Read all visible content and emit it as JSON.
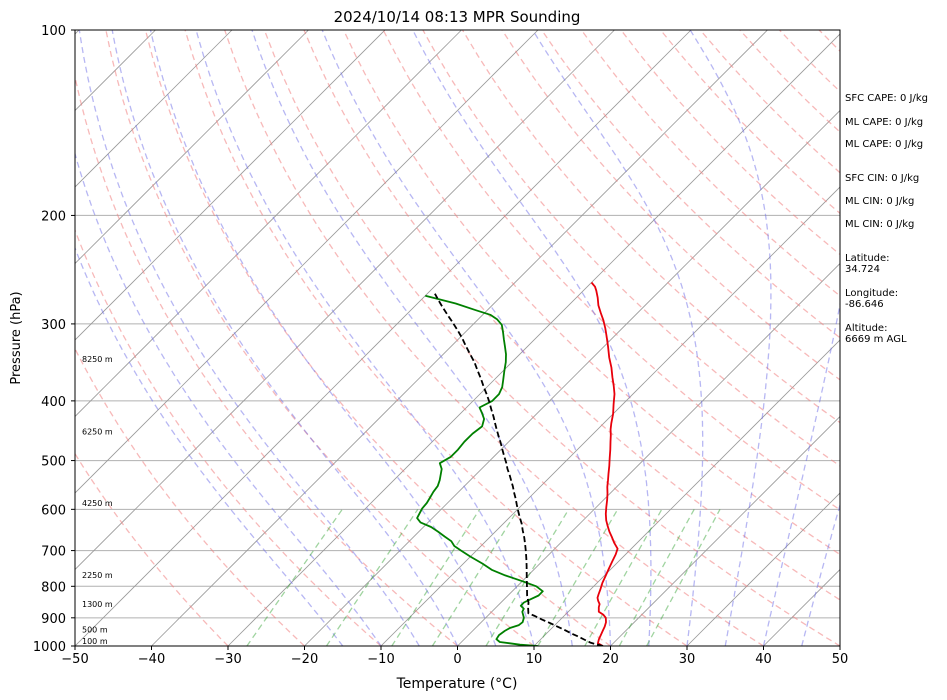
{
  "chart_data": {
    "type": "line",
    "title": "2024/10/14 08:13 MPR Sounding",
    "xlabel": "Temperature (°C)",
    "ylabel": "Pressure (hPa)",
    "xlim": [
      -50,
      50
    ],
    "ylim": [
      1000,
      100
    ],
    "y_scale": "log",
    "x_ticks": [
      "−50",
      "−40",
      "−30",
      "−20",
      "−10",
      "0",
      "10",
      "20",
      "30",
      "40",
      "50"
    ],
    "y_ticks": [
      "100",
      "200",
      "300",
      "400",
      "500",
      "600",
      "700",
      "800",
      "900",
      "1000"
    ],
    "height_labels": [
      "100 m",
      "500 m",
      "1300 m",
      "2250 m",
      "4250 m",
      "6250 m",
      "8250 m"
    ],
    "grid": true,
    "colors": {
      "temperature": "#e8000b",
      "dewpoint": "#008000",
      "parcel": "#000000",
      "dry_adiabats": "#f08080",
      "moist_adiabats": "#6f6fe8",
      "mixing_ratio": "#2ca02c",
      "isotherms": "#999999"
    },
    "series": [
      {
        "name": "",
        "style": "temperature",
        "points": [
          [
            19.0,
            1000
          ],
          [
            18.0,
            990
          ],
          [
            17.6,
            975
          ],
          [
            17.3,
            960
          ],
          [
            17.0,
            945
          ],
          [
            16.7,
            930
          ],
          [
            16.3,
            915
          ],
          [
            15.7,
            900
          ],
          [
            15.0,
            890
          ],
          [
            14.0,
            880
          ],
          [
            13.4,
            865
          ],
          [
            13.1,
            855
          ],
          [
            12.5,
            845
          ],
          [
            12.0,
            835
          ],
          [
            11.7,
            825
          ],
          [
            11.3,
            810
          ],
          [
            10.7,
            790
          ],
          [
            10.2,
            770
          ],
          [
            9.7,
            750
          ],
          [
            9.2,
            730
          ],
          [
            8.7,
            710
          ],
          [
            8.2,
            695
          ],
          [
            7.0,
            680
          ],
          [
            5.9,
            665
          ],
          [
            4.9,
            652
          ],
          [
            3.9,
            638
          ],
          [
            3.0,
            625
          ],
          [
            2.1,
            610
          ],
          [
            1.3,
            595
          ],
          [
            0.5,
            580
          ],
          [
            -0.3,
            566
          ],
          [
            -1.2,
            552
          ],
          [
            -2.0,
            538
          ],
          [
            -2.8,
            525
          ],
          [
            -3.7,
            510
          ],
          [
            -4.7,
            495
          ],
          [
            -5.7,
            480
          ],
          [
            -6.7,
            466
          ],
          [
            -7.5,
            455
          ],
          [
            -8.3,
            445
          ],
          [
            -9.0,
            435
          ],
          [
            -10.0,
            420
          ],
          [
            -11.2,
            405
          ],
          [
            -12.4,
            390
          ],
          [
            -13.6,
            378
          ],
          [
            -14.9,
            366
          ],
          [
            -16.3,
            353
          ],
          [
            -17.9,
            340
          ],
          [
            -19.4,
            327
          ],
          [
            -20.9,
            315
          ],
          [
            -22.2,
            305
          ],
          [
            -23.5,
            296
          ],
          [
            -24.8,
            288
          ],
          [
            -26.1,
            280
          ],
          [
            -27.2,
            272
          ],
          [
            -28.3,
            265
          ],
          [
            -29.0,
            261
          ],
          [
            -30.0,
            257
          ]
        ]
      },
      {
        "name": "",
        "style": "dewpoint",
        "points": [
          [
            10.5,
            1000
          ],
          [
            8.0,
            995
          ],
          [
            6.5,
            990
          ],
          [
            5.0,
            985
          ],
          [
            4.2,
            975
          ],
          [
            4.0,
            960
          ],
          [
            4.2,
            945
          ],
          [
            4.5,
            935
          ],
          [
            5.3,
            925
          ],
          [
            5.4,
            915
          ],
          [
            5.0,
            900
          ],
          [
            4.5,
            890
          ],
          [
            4.0,
            880
          ],
          [
            3.8,
            870
          ],
          [
            3.0,
            860
          ],
          [
            3.0,
            850
          ],
          [
            3.4,
            840
          ],
          [
            4.0,
            828
          ],
          [
            4.0,
            815
          ],
          [
            2.5,
            800
          ],
          [
            0.0,
            785
          ],
          [
            -3.0,
            768
          ],
          [
            -5.5,
            752
          ],
          [
            -7.5,
            735
          ],
          [
            -10.0,
            716
          ],
          [
            -12.0,
            700
          ],
          [
            -13.5,
            688
          ],
          [
            -14.5,
            676
          ],
          [
            -16.0,
            664
          ],
          [
            -17.5,
            652
          ],
          [
            -19.0,
            641
          ],
          [
            -21.0,
            630
          ],
          [
            -22.0,
            620
          ],
          [
            -22.3,
            609
          ],
          [
            -22.6,
            598
          ],
          [
            -22.7,
            586
          ],
          [
            -23.0,
            574
          ],
          [
            -23.3,
            562
          ],
          [
            -23.5,
            550
          ],
          [
            -24.0,
            538
          ],
          [
            -24.6,
            527
          ],
          [
            -25.2,
            516
          ],
          [
            -26.2,
            505
          ],
          [
            -25.6,
            493
          ],
          [
            -25.6,
            480
          ],
          [
            -25.8,
            466
          ],
          [
            -25.8,
            452
          ],
          [
            -25.5,
            440
          ],
          [
            -26.2,
            428
          ],
          [
            -27.2,
            419
          ],
          [
            -28.3,
            410
          ],
          [
            -27.5,
            400
          ],
          [
            -27.5,
            390
          ],
          [
            -28.0,
            380
          ],
          [
            -28.8,
            370
          ],
          [
            -29.8,
            358
          ],
          [
            -30.8,
            346
          ],
          [
            -31.8,
            336
          ],
          [
            -33.0,
            326
          ],
          [
            -34.0,
            318
          ],
          [
            -35.0,
            310
          ],
          [
            -36.2,
            301
          ],
          [
            -37.5,
            295
          ],
          [
            -39.0,
            290
          ],
          [
            -41.5,
            285
          ],
          [
            -45.0,
            278
          ],
          [
            -50.0,
            270
          ]
        ]
      },
      {
        "name": "",
        "style": "parcel",
        "dashed": true,
        "points": [
          [
            19.0,
            1000
          ],
          [
            18.0,
            994
          ],
          [
            17.0,
            988
          ],
          [
            15.7,
            976
          ],
          [
            14.4,
            964
          ],
          [
            13.1,
            953
          ],
          [
            11.7,
            940
          ],
          [
            10.4,
            929
          ],
          [
            9.0,
            917
          ],
          [
            7.6,
            906
          ],
          [
            6.2,
            894
          ],
          [
            5.0,
            885
          ],
          [
            4.2,
            866
          ],
          [
            3.6,
            850
          ],
          [
            2.5,
            828
          ],
          [
            1.5,
            805
          ],
          [
            0.5,
            783
          ],
          [
            -0.5,
            761
          ],
          [
            -1.5,
            740
          ],
          [
            -2.5,
            720
          ],
          [
            -3.5,
            701
          ],
          [
            -4.5,
            683
          ],
          [
            -5.5,
            666
          ],
          [
            -6.6,
            649
          ],
          [
            -7.6,
            633
          ],
          [
            -8.7,
            618
          ],
          [
            -9.7,
            604
          ],
          [
            -10.7,
            590
          ],
          [
            -11.7,
            576
          ],
          [
            -12.7,
            563
          ],
          [
            -13.6,
            551
          ],
          [
            -14.6,
            539
          ],
          [
            -15.6,
            527
          ],
          [
            -16.6,
            516
          ],
          [
            -17.6,
            504
          ],
          [
            -18.7,
            492
          ],
          [
            -19.8,
            480
          ],
          [
            -20.9,
            468
          ],
          [
            -22.0,
            457
          ],
          [
            -23.1,
            446
          ],
          [
            -24.2,
            435
          ],
          [
            -25.3,
            424
          ],
          [
            -26.5,
            413
          ],
          [
            -27.7,
            402
          ],
          [
            -29.0,
            391
          ],
          [
            -30.4,
            380
          ],
          [
            -31.9,
            368
          ],
          [
            -33.4,
            357
          ],
          [
            -34.9,
            346
          ],
          [
            -36.5,
            336
          ],
          [
            -38.1,
            326
          ],
          [
            -39.7,
            316
          ],
          [
            -41.3,
            307
          ],
          [
            -43.0,
            298
          ],
          [
            -44.6,
            290
          ],
          [
            -46.2,
            282
          ],
          [
            -47.6,
            275
          ],
          [
            -49.0,
            268
          ]
        ]
      }
    ]
  },
  "side_panel": {
    "sfc_cape": "SFC CAPE: 0 J/kg",
    "ml_cape_1": "ML CAPE: 0 J/kg",
    "ml_cape_2": "ML CAPE: 0 J/kg",
    "sfc_cin": "SFC CIN: 0 J/kg",
    "ml_cin_1": "ML CIN: 0 J/kg",
    "ml_cin_2": "ML CIN: 0 J/kg",
    "latitude_label": "Latitude:",
    "latitude_value": "34.724",
    "longitude_label": "Longitude:",
    "longitude_value": "-86.646",
    "altitude_label": "Altitude:",
    "altitude_value": "6669 m AGL"
  }
}
